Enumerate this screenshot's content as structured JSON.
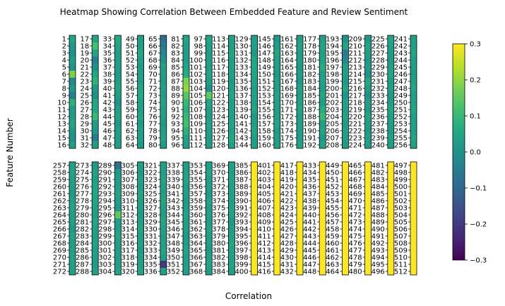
{
  "chart_data": {
    "type": "heatmap",
    "title": "Heatmap Showing Correlation Between Embedded Feature and Review Sentiment",
    "xlabel": "Correlation",
    "ylabel": "Feature Number",
    "colormap": "viridis",
    "vmin": -0.3,
    "vmax": 0.3,
    "colorbar_ticks": [
      0.3,
      0.2,
      0.1,
      0.0,
      -0.1,
      -0.2,
      -0.3
    ],
    "colorbar_tick_labels": [
      "0.3",
      "0.2",
      "0.1",
      "0.0",
      "−0.1",
      "−0.2",
      "−0.3"
    ],
    "panel_rows": 2,
    "panel_cols": 16,
    "features_per_panel": 16,
    "feature_numbers": [
      1,
      384
    ],
    "values": [
      0.05,
      0.02,
      0.0,
      0.03,
      0.0,
      0.18,
      -0.02,
      0.02,
      -0.04,
      0.08,
      0.03,
      0.03,
      0.05,
      0.02,
      0.0,
      0.03,
      0.05,
      0.12,
      0.05,
      -0.04,
      0.0,
      0.05,
      0.08,
      0.02,
      0.0,
      0.05,
      0.06,
      0.1,
      0.03,
      0.02,
      -0.05,
      0.03,
      0.06,
      0.05,
      0.03,
      0.04,
      0.03,
      0.02,
      0.04,
      0.05,
      0.03,
      0.0,
      0.03,
      0.05,
      0.02,
      0.04,
      0.03,
      0.03,
      0.03,
      0.03,
      0.05,
      0.03,
      0.02,
      0.04,
      0.03,
      0.05,
      0.06,
      0.04,
      0.03,
      0.05,
      0.02,
      0.04,
      0.03,
      0.02,
      -0.08,
      -0.05,
      -0.02,
      0.0,
      0.04,
      0.03,
      0.02,
      0.04,
      0.03,
      0.05,
      0.04,
      0.03,
      0.02,
      0.03,
      0.05,
      0.02,
      0.05,
      0.04,
      0.03,
      0.03,
      0.05,
      0.07,
      0.18,
      0.2,
      0.14,
      0.1,
      0.08,
      0.1,
      0.12,
      0.08,
      0.05,
      0.03,
      0.05,
      0.04,
      0.03,
      0.04,
      0.03,
      0.05,
      0.04,
      0.0,
      0.15,
      0.05,
      0.04,
      0.03,
      0.05,
      0.04,
      0.03,
      0.03,
      0.04,
      0.03,
      0.05,
      0.03,
      0.04,
      0.03,
      0.02,
      0.04,
      0.05,
      0.03,
      0.03,
      0.04,
      0.05,
      0.03,
      0.06,
      0.04,
      0.03,
      0.04,
      0.02,
      0.05,
      0.06,
      0.05,
      0.04,
      0.03,
      0.04,
      0.03,
      0.05,
      0.02,
      0.04,
      0.05,
      0.03,
      0.04,
      0.02,
      0.03,
      0.05,
      0.04,
      0.03,
      0.02,
      0.04,
      0.03,
      0.05,
      0.04,
      0.03,
      0.04,
      0.05,
      0.03,
      0.04,
      0.03,
      0.04,
      0.05,
      0.03,
      0.04,
      0.02,
      0.04,
      0.02,
      0.05,
      0.03,
      0.04,
      0.05,
      0.03,
      0.04,
      0.04,
      0.03,
      0.05,
      0.03,
      0.05,
      0.04,
      0.05,
      0.07,
      0.03,
      0.05,
      0.03,
      0.05,
      0.04,
      0.07,
      0.1,
      0.04,
      0.05,
      0.02,
      0.05,
      0.0,
      0.05,
      -0.05,
      -0.02,
      0.03,
      0.04,
      0.02,
      0.05,
      0.01,
      0.04,
      0.03,
      0.05,
      0.02,
      0.04,
      0.03,
      0.02,
      0.02,
      0.05,
      0.04,
      0.02,
      0.03,
      0.0,
      0.06,
      0.03,
      0.0,
      0.04,
      0.02,
      0.05,
      0.03,
      0.02,
      0.04,
      0.03,
      0.05,
      0.04,
      0.03,
      0.02,
      0.04,
      0.05,
      0.03,
      0.04,
      0.02,
      0.03,
      0.05,
      0.04,
      0.03,
      0.02,
      0.04,
      0.03,
      0.04,
      0.03,
      0.05,
      0.04,
      0.03,
      0.02,
      0.04,
      0.05,
      0.03,
      0.04,
      0.05,
      0.03,
      0.04,
      0.03,
      0.05,
      0.04,
      0.03,
      0.05,
      0.04,
      0.03,
      0.02,
      0.04,
      0.05,
      0.03,
      0.04,
      0.02,
      0.05,
      0.03,
      0.04,
      0.05,
      0.03,
      0.04,
      0.02,
      0.04,
      0.03,
      0.05,
      0.06,
      0.05,
      0.04,
      0.03,
      0.05,
      0.04,
      0.03,
      0.05,
      0.04,
      0.03,
      0.02,
      0.04,
      -0.08,
      0.02,
      0.03,
      0.04,
      0.05,
      0.03,
      0.02,
      0.15,
      0.04,
      0.03,
      0.05,
      0.04,
      0.03,
      0.03,
      0.04,
      0.05,
      0.03,
      0.02,
      0.04,
      0.03,
      0.05,
      0.04,
      0.03,
      0.02,
      0.04,
      0.05,
      0.03,
      0.04,
      0.02,
      0.03,
      0.04,
      0.05,
      0.04,
      0.03,
      0.05,
      0.04,
      0.03,
      0.05,
      0.04,
      0.03,
      0.05,
      0.04,
      0.03,
      0.04,
      0.05,
      0.03,
      -0.2,
      0.04,
      0.03,
      0.04,
      0.05,
      0.03,
      0.04,
      0.02,
      0.03,
      0.05,
      0.04,
      0.03,
      0.02,
      0.04,
      0.05,
      0.03,
      0.04,
      0.03,
      0.04,
      0.05,
      0.03,
      0.04,
      0.02,
      0.05,
      0.03,
      0.04,
      0.03,
      0.05,
      0.04,
      0.03,
      0.02,
      0.04,
      0.05,
      0.03,
      0.03,
      0.04,
      0.05,
      0.03,
      0.04,
      0.03,
      0.05,
      0.04,
      0.02,
      0.03,
      0.04,
      0.05,
      0.03,
      0.04,
      0.05,
      0.03
    ]
  }
}
